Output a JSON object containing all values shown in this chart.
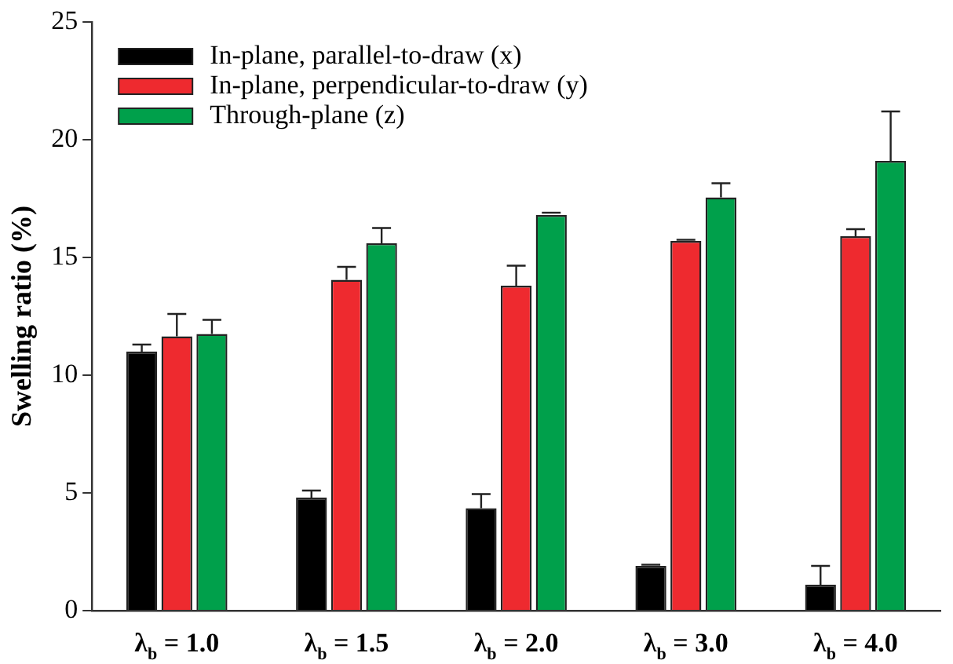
{
  "chart_data": {
    "type": "bar",
    "ylabel": "Swelling ratio (%)",
    "categories": [
      "λ$_{b}$ = 1.0",
      "λ$_{b}$ = 1.5",
      "λ$_{b}$ = 2.0",
      "λ$_{b}$ = 3.0",
      "λ$_{b}$ = 4.0"
    ],
    "series": [
      {
        "name": "In-plane, parallel-to-draw (x)",
        "color": "#000000",
        "values": [
          11.0,
          4.8,
          4.35,
          1.9,
          1.1
        ],
        "errors": [
          [
            11.0,
            11.3
          ],
          [
            4.8,
            5.1
          ],
          [
            4.35,
            4.95
          ],
          [
            1.9,
            1.95
          ],
          [
            1.1,
            1.9
          ]
        ]
      },
      {
        "name": "In-plane, perpendicular-to-draw (y)",
        "color": "#ee2a2f",
        "values": [
          11.65,
          14.05,
          13.8,
          15.7,
          15.9
        ],
        "errors": [
          [
            11.65,
            12.6
          ],
          [
            14.05,
            14.6
          ],
          [
            13.8,
            14.65
          ],
          [
            15.7,
            15.75
          ],
          [
            15.9,
            16.2
          ]
        ]
      },
      {
        "name": "Through-plane (z)",
        "color": "#00a04b",
        "values": [
          11.75,
          15.6,
          16.8,
          17.55,
          19.1
        ],
        "errors": [
          [
            11.75,
            12.35
          ],
          [
            15.6,
            16.25
          ],
          [
            16.8,
            16.9
          ],
          [
            17.55,
            18.15
          ],
          [
            19.1,
            21.2
          ]
        ]
      }
    ],
    "ylim": [
      0,
      25
    ],
    "yticks": [
      0,
      5,
      10,
      15,
      20,
      25
    ],
    "grid": false,
    "legend": "top left"
  }
}
